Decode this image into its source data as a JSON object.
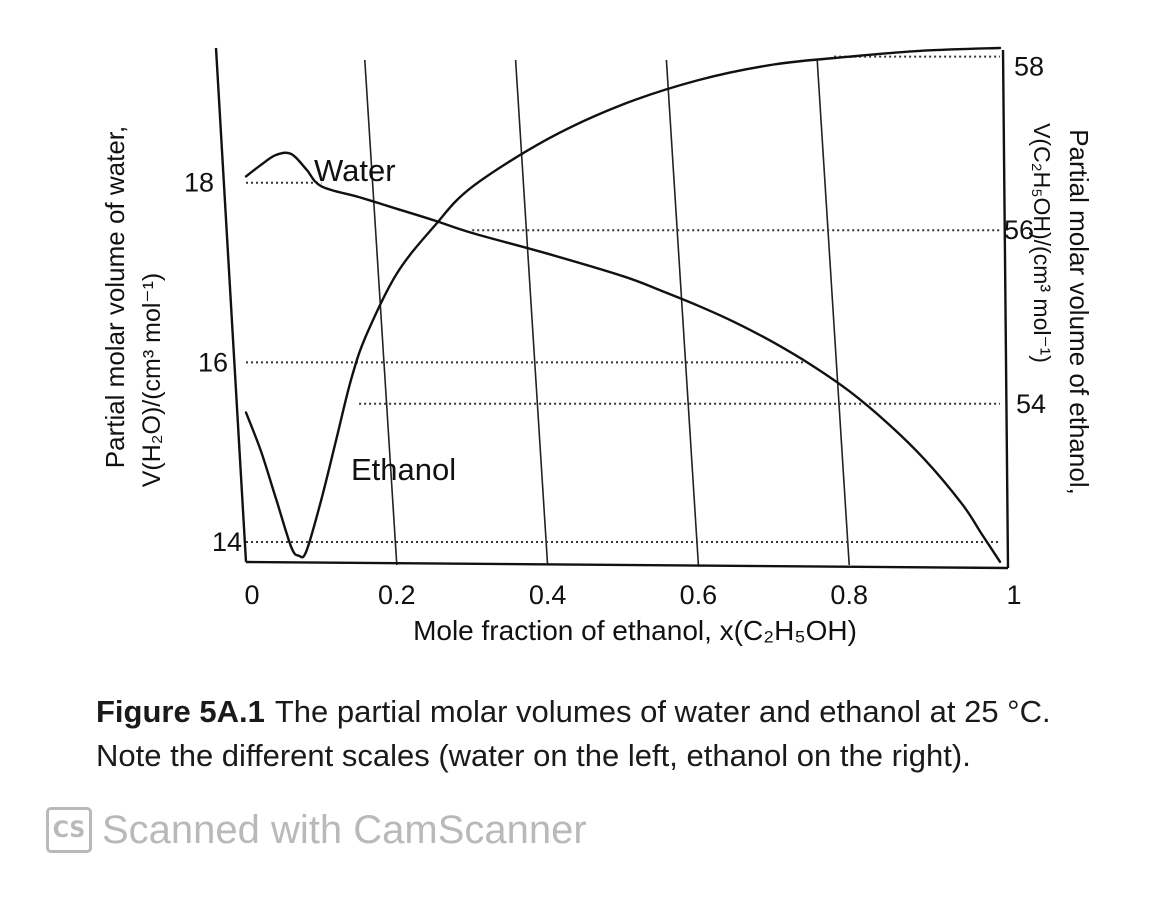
{
  "chart_data": {
    "type": "line",
    "xlabel": "Mole fraction of ethanol, x(C₂H₅OH)",
    "ylabel_left": {
      "line1": "Partial molar volume of water,",
      "line2": "V(H₂O)/(cm³ mol⁻¹)"
    },
    "ylabel_right": {
      "line1": "Partial molar volume of ethanol,",
      "line2": "V(C₂H₅OH)/(cm³ mol⁻¹)"
    },
    "x_ticks": [
      "0",
      "0.2",
      "0.4",
      "0.6",
      "0.8",
      "1"
    ],
    "y_left_ticks": [
      "18",
      "16",
      "14"
    ],
    "y_right_ticks": [
      "58",
      "56",
      "54"
    ],
    "xlim": [
      0,
      1
    ],
    "ylim_left": [
      13.8,
      19.5
    ],
    "ylim_right": [
      52.2,
      58.1
    ],
    "grid": "vertical",
    "series": [
      {
        "name": "Water",
        "axis": "left",
        "x": [
          0,
          0.02,
          0.04,
          0.06,
          0.08,
          0.1,
          0.15,
          0.2,
          0.25,
          0.3,
          0.4,
          0.5,
          0.55,
          0.6,
          0.65,
          0.7,
          0.75,
          0.8,
          0.85,
          0.9,
          0.95,
          0.975,
          1.0
        ],
        "y": [
          18.07,
          18.2,
          18.31,
          18.32,
          18.15,
          17.96,
          17.84,
          17.71,
          17.58,
          17.44,
          17.21,
          16.96,
          16.8,
          16.63,
          16.44,
          16.22,
          15.97,
          15.68,
          15.33,
          14.92,
          14.42,
          14.1,
          13.78
        ]
      },
      {
        "name": "Ethanol",
        "axis": "right",
        "x": [
          0,
          0.02,
          0.04,
          0.06,
          0.07,
          0.08,
          0.1,
          0.12,
          0.14,
          0.16,
          0.2,
          0.25,
          0.3,
          0.4,
          0.5,
          0.6,
          0.7,
          0.8,
          0.9,
          1.0
        ],
        "y": [
          53.9,
          53.45,
          52.9,
          52.35,
          52.25,
          52.3,
          52.9,
          53.6,
          54.3,
          54.8,
          55.5,
          56.05,
          56.5,
          57.05,
          57.45,
          57.73,
          57.91,
          58.0,
          58.07,
          58.1
        ]
      }
    ],
    "annotations": [
      "Water",
      "Ethanol"
    ]
  },
  "caption": {
    "label": "Figure 5A.1",
    "text": "The partial molar volumes of water and ethanol at 25 °C. Note the different scales (water on the left, ethanol on the right)."
  },
  "watermark": {
    "logo": "CS",
    "text": "Scanned with CamScanner"
  }
}
